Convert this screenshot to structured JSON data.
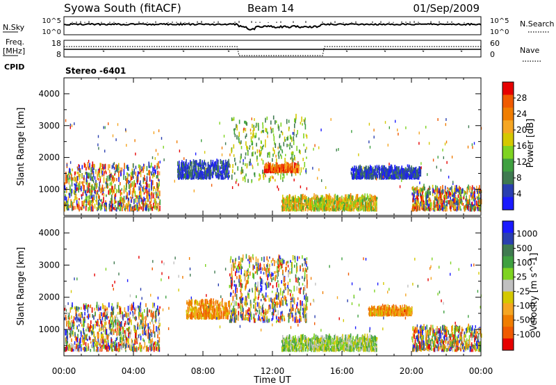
{
  "header": {
    "station": "Syowa South (fitACF)",
    "beam": "Beam 14",
    "date": "01/Sep/2009"
  },
  "noise_panel": {
    "left_label": "N.Sky",
    "left_ticks": [
      "10^5",
      "10^0"
    ],
    "right_label": "N.Search",
    "right_ticks": [
      "10^5",
      "10^0"
    ],
    "left_series": "solid",
    "right_series": "dotted"
  },
  "freq_panel": {
    "left_label_1": "Freq.",
    "left_label_2": "[MHz]",
    "left_ticks": [
      "18",
      "8"
    ],
    "right_label": "Nave",
    "right_ticks": [
      "60",
      "0"
    ],
    "left_series": "solid",
    "right_series": "dotted"
  },
  "cpid_panel": {
    "label": "CPID",
    "value": "Stereo -6401"
  },
  "x_axis": {
    "label": "Time UT",
    "ticks": [
      "00:00",
      "04:00",
      "08:00",
      "12:00",
      "16:00",
      "20:00",
      "00:00"
    ]
  },
  "colors": {
    "power_scale": [
      "#1a1aff",
      "#2a3fb0",
      "#3f7a50",
      "#3fa040",
      "#7ed321",
      "#d4c800",
      "#f5a623",
      "#f07d00",
      "#f05a00",
      "#e60000"
    ],
    "velocity_scale": [
      "#e60000",
      "#f05a00",
      "#f07d00",
      "#f5a623",
      "#d4c800",
      "#c0c0c0",
      "#7ed321",
      "#3fa040",
      "#3f7a50",
      "#2a3fb0",
      "#1a1aff"
    ]
  },
  "chart_data": [
    {
      "type": "heatmap",
      "title": "Power",
      "ylabel": "Slant Range [km]",
      "xlabel": "",
      "x_range_hours": [
        0,
        24
      ],
      "ylim": [
        180,
        4500
      ],
      "yticks": [
        1000,
        2000,
        3000,
        4000
      ],
      "colorbar": {
        "label": "Power [dB]",
        "range": [
          0,
          32
        ],
        "tick_labels": [
          "4",
          "8",
          "12",
          "16",
          "20",
          "24",
          "28"
        ]
      },
      "echo_regions": [
        {
          "start": 0.0,
          "end": 5.5,
          "r_low": 300,
          "r_high": 1700,
          "value": "mixed_low_high"
        },
        {
          "start": 6.5,
          "end": 9.5,
          "r_low": 1300,
          "r_high": 1800,
          "value": "low"
        },
        {
          "start": 9.5,
          "end": 14.0,
          "r_low": 1200,
          "r_high": 3200,
          "value": "scattered_mid"
        },
        {
          "start": 11.5,
          "end": 13.5,
          "r_low": 1500,
          "r_high": 1700,
          "value": "high"
        },
        {
          "start": 12.5,
          "end": 18.0,
          "r_low": 300,
          "r_high": 700,
          "value": "mid_high"
        },
        {
          "start": 16.5,
          "end": 20.5,
          "r_low": 1300,
          "r_high": 1600,
          "value": "low"
        },
        {
          "start": 20.0,
          "end": 24.0,
          "r_low": 300,
          "r_high": 1000,
          "value": "mixed"
        }
      ]
    },
    {
      "type": "heatmap",
      "title": "Velocity",
      "ylabel": "Slant Range [km]",
      "xlabel": "Time UT",
      "x_range_hours": [
        0,
        24
      ],
      "ylim": [
        180,
        4500
      ],
      "yticks": [
        1000,
        2000,
        3000,
        4000
      ],
      "colorbar": {
        "label": "Velocity [m s^-1]",
        "tick_labels": [
          "1000",
          "500",
          "100",
          "25",
          "-25",
          "-100",
          "-500",
          "-1000"
        ]
      },
      "echo_regions": [
        {
          "start": 0.0,
          "end": 5.5,
          "r_low": 300,
          "r_high": 1700,
          "value": "mixed_negative_positive"
        },
        {
          "start": 7.0,
          "end": 9.5,
          "r_low": 1300,
          "r_high": 1800,
          "value": "negative"
        },
        {
          "start": 9.5,
          "end": 14.0,
          "r_low": 1200,
          "r_high": 3200,
          "value": "mixed"
        },
        {
          "start": 12.5,
          "end": 18.0,
          "r_low": 300,
          "r_high": 700,
          "value": "near_zero"
        },
        {
          "start": 17.5,
          "end": 20.0,
          "r_low": 1400,
          "r_high": 1600,
          "value": "negative"
        },
        {
          "start": 20.0,
          "end": 24.0,
          "r_low": 300,
          "r_high": 1000,
          "value": "mixed"
        }
      ]
    }
  ]
}
